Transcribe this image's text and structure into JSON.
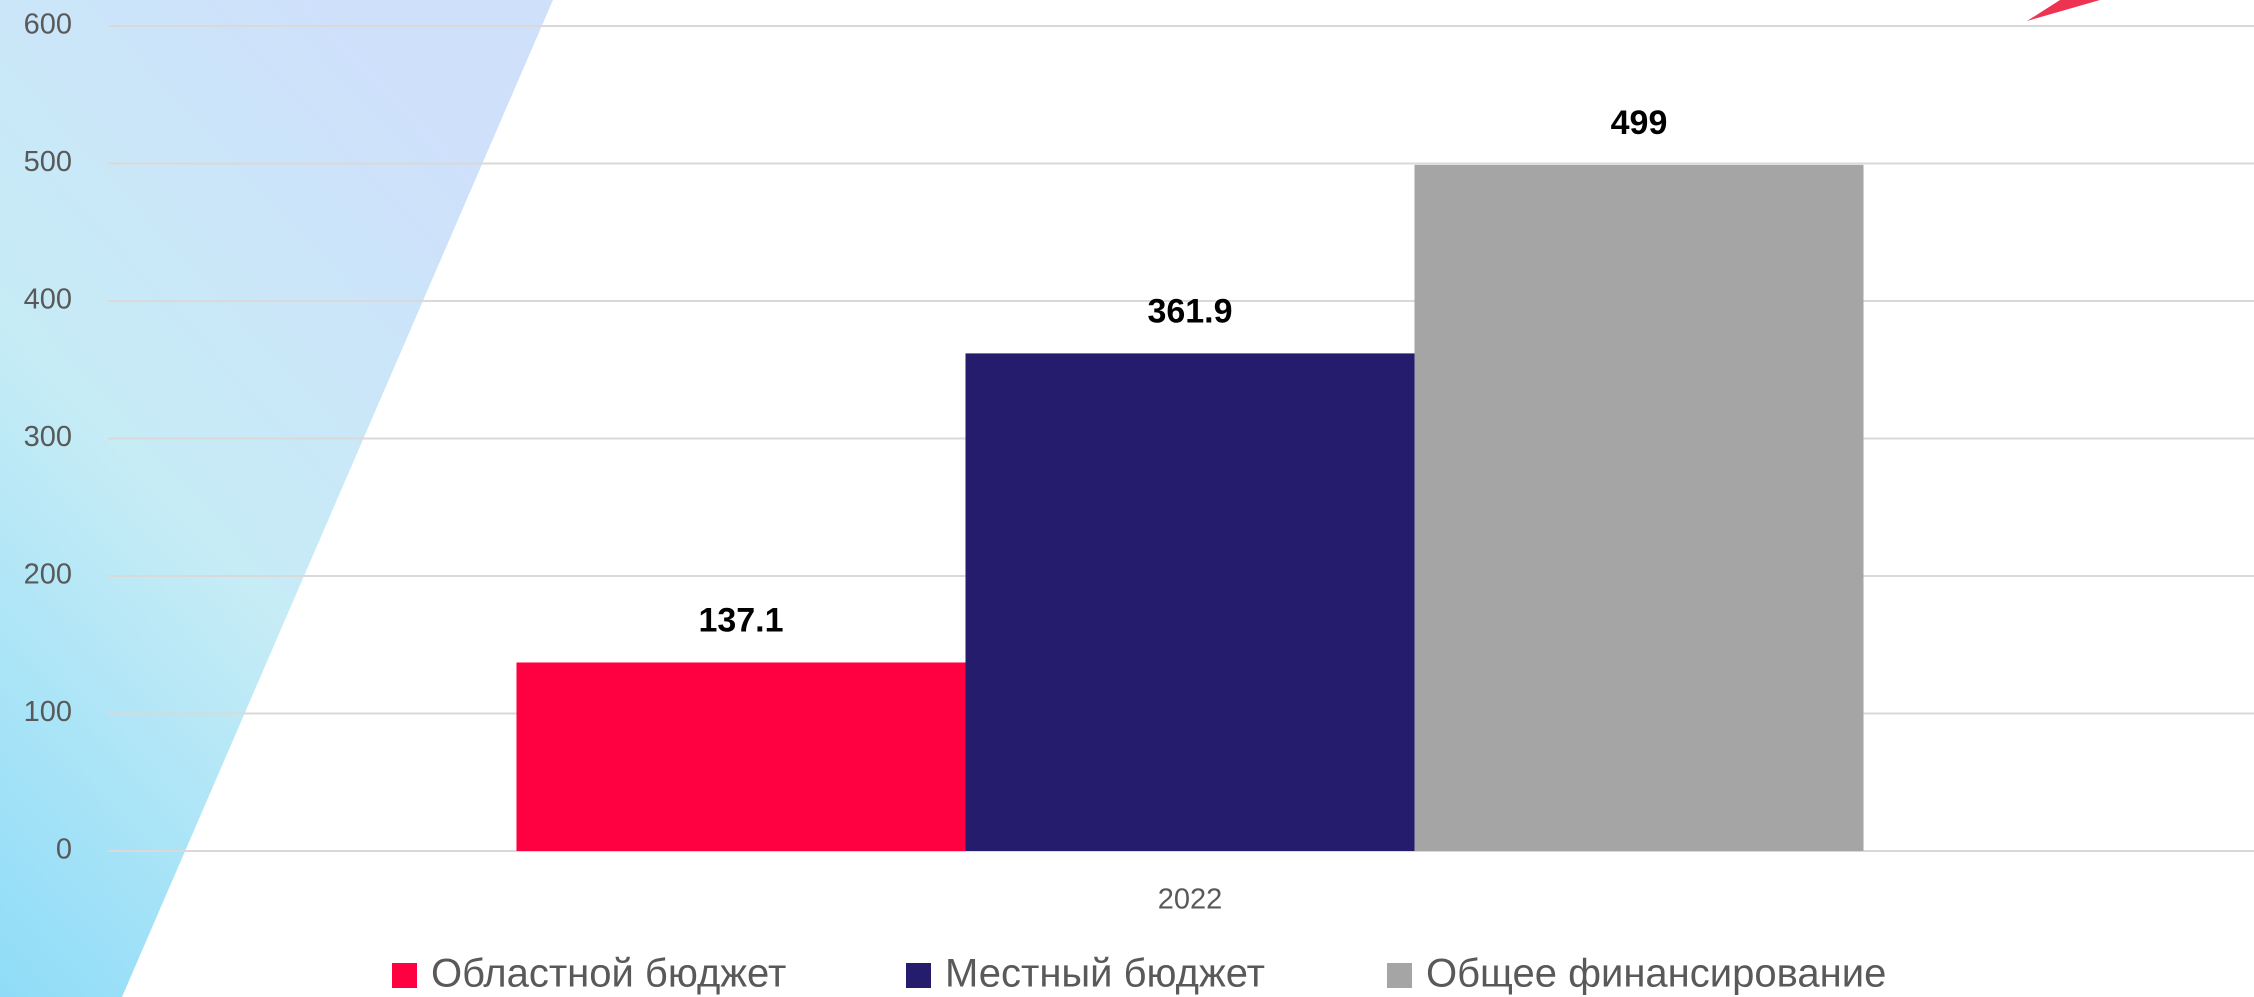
{
  "chart_data": {
    "type": "bar",
    "categories": [
      "2022"
    ],
    "series": [
      {
        "name": "Областной бюджет",
        "color": "#ff0040",
        "values": [
          137.1
        ]
      },
      {
        "name": "Местный бюджет",
        "color": "#261c6e",
        "values": [
          361.9
        ]
      },
      {
        "name": "Общее финансирование",
        "color": "#a5a5a5",
        "values": [
          499
        ]
      }
    ],
    "ylim": [
      0,
      600
    ],
    "yticks": [
      0,
      100,
      200,
      300,
      400,
      500,
      600
    ],
    "grid": true,
    "legend": "bottom"
  }
}
